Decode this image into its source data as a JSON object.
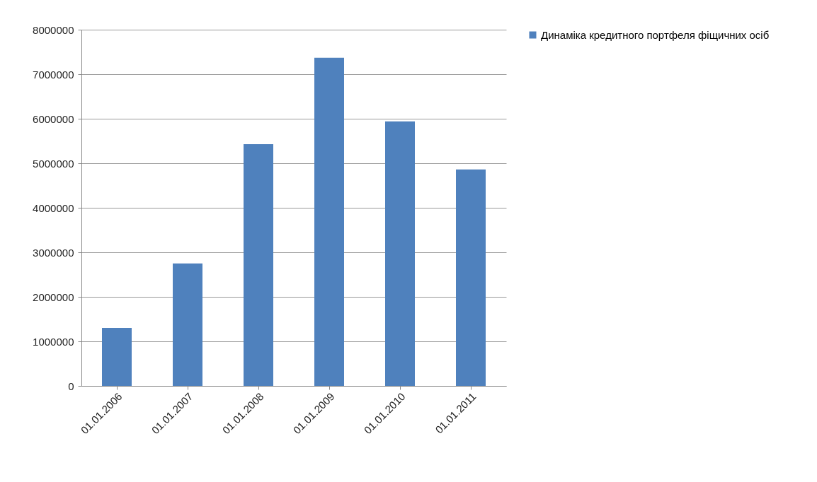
{
  "chart_data": {
    "type": "bar",
    "categories": [
      "01.01.2006",
      "01.01.2007",
      "01.01.2008",
      "01.01.2009",
      "01.01.2010",
      "01.01.2011"
    ],
    "series": [
      {
        "name": "Динаміка кредитного портфеля фіщичних осіб",
        "color": "#4f81bd",
        "values": [
          1300000,
          2750000,
          5430000,
          7370000,
          5940000,
          4860000
        ]
      }
    ],
    "ylim": [
      0,
      8000000
    ],
    "yticks": [
      0,
      1000000,
      2000000,
      3000000,
      4000000,
      5000000,
      6000000,
      7000000,
      8000000
    ],
    "grid": "y",
    "legend": "right"
  }
}
